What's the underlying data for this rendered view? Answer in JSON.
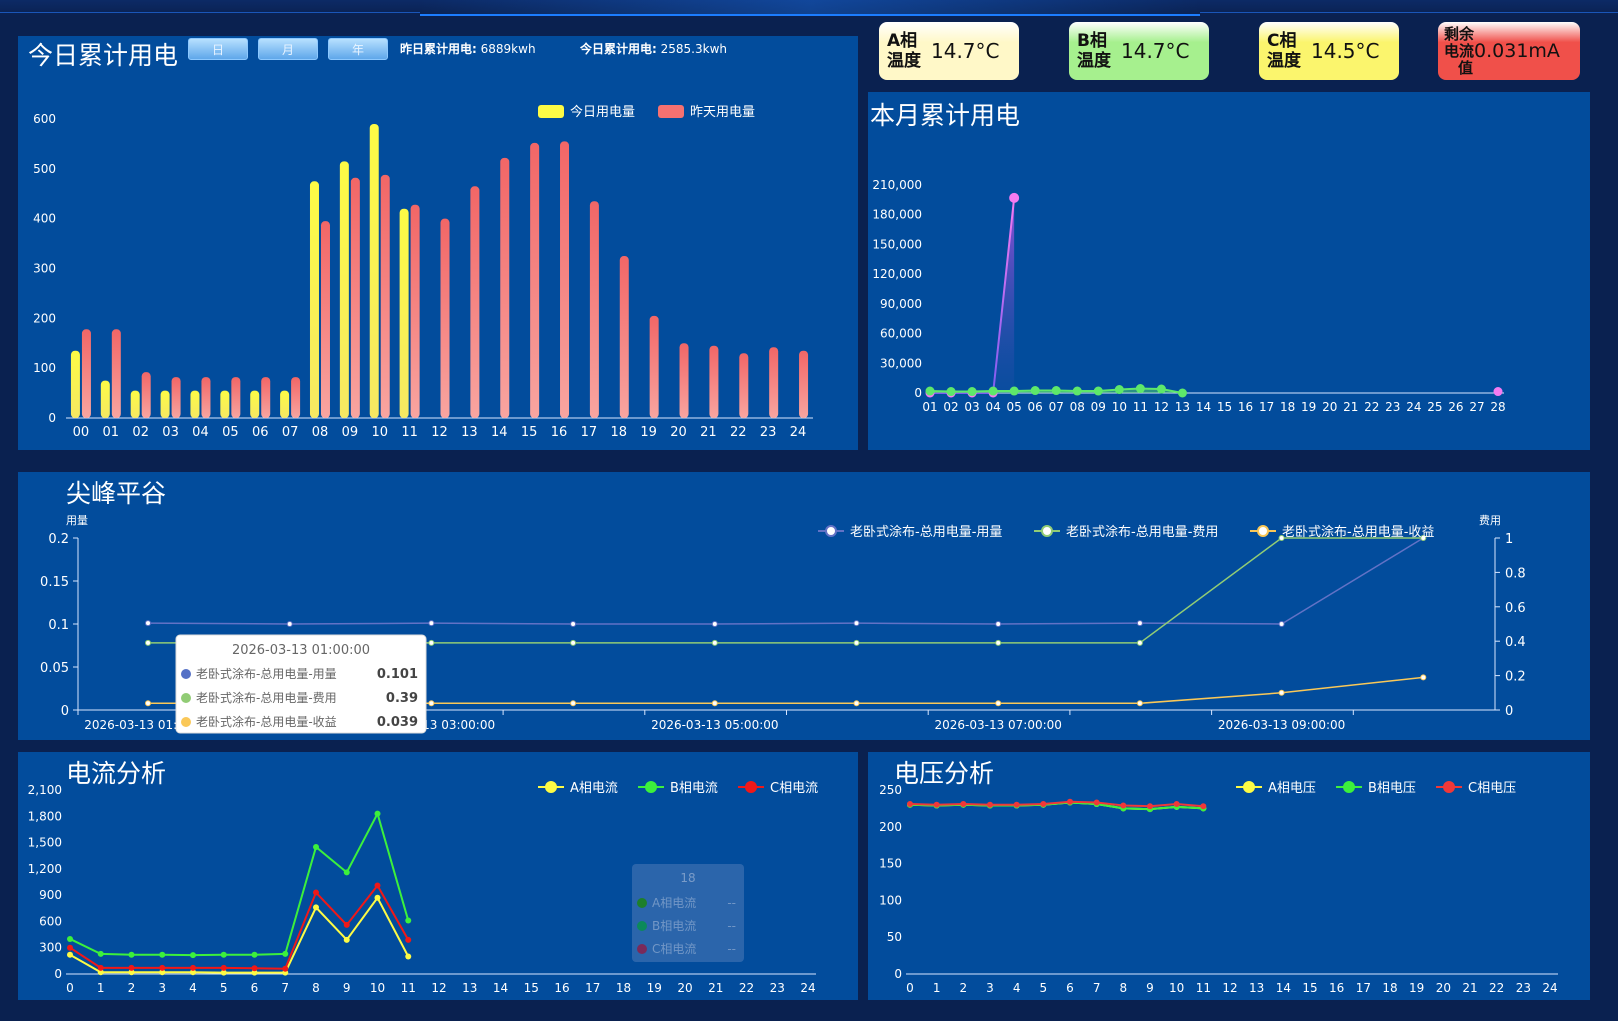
{
  "panels": {
    "today_title": "今日累计用电",
    "month_title": "本月累计用电",
    "peak_title": "尖峰平谷",
    "current_title": "电流分析",
    "voltage_title": "电压分析"
  },
  "buttons": {
    "day": "日",
    "month": "月",
    "year": "年"
  },
  "stats": {
    "yesterday_label": "昨日累计用电:",
    "yesterday_value": "6889kwh",
    "today_label": "今日累计用电:",
    "today_value": "2585.3kwh"
  },
  "cards": [
    {
      "label_line1": "A相",
      "label_line2": "温度",
      "value": "14.7°C",
      "color": "#fff8c8"
    },
    {
      "label_line1": "B相",
      "label_line2": "温度",
      "value": "14.7°C",
      "color": "#a6f08e"
    },
    {
      "label_line1": "C相",
      "label_line2": "温度",
      "value": "14.5°C",
      "color": "#fbf56d"
    },
    {
      "label_line1": "剩余",
      "label_line2": "电流",
      "label_line3": "值",
      "value": "0.031mA",
      "color": "#f0504a"
    }
  ],
  "tooltips": {
    "peak": {
      "title": "2026-03-13 01:00:00",
      "rows": [
        {
          "name": "老卧式涂布-总用电量-用量",
          "value": "0.101",
          "color": "#5470c6"
        },
        {
          "name": "老卧式涂布-总用电量-费用",
          "value": "0.39",
          "color": "#91cc75"
        },
        {
          "name": "老卧式涂布-总用电量-收益",
          "value": "0.039",
          "color": "#fac858"
        }
      ]
    },
    "current": {
      "title": "18",
      "rows": [
        {
          "name": "A相电流",
          "value": "--",
          "color": "#1d7f2a"
        },
        {
          "name": "B相电流",
          "value": "--",
          "color": "#0b8a5a"
        },
        {
          "name": "C相电流",
          "value": "--",
          "color": "#7a2a5a"
        }
      ]
    }
  },
  "chart_data": [
    {
      "id": "today",
      "type": "bar",
      "categories": [
        "00",
        "01",
        "02",
        "03",
        "04",
        "05",
        "06",
        "07",
        "08",
        "09",
        "10",
        "11",
        "12",
        "13",
        "14",
        "15",
        "16",
        "17",
        "18",
        "19",
        "20",
        "21",
        "22",
        "23",
        "24"
      ],
      "series": [
        {
          "name": "今日用电量",
          "color": "#fdfb45",
          "values": [
            135,
            75,
            55,
            55,
            55,
            55,
            55,
            55,
            475,
            515,
            590,
            420,
            null,
            null,
            null,
            null,
            null,
            null,
            null,
            null,
            null,
            null,
            null,
            null,
            null
          ]
        },
        {
          "name": "昨天用电量",
          "color": "#f57171",
          "values": [
            178,
            178,
            92,
            82,
            82,
            82,
            82,
            82,
            395,
            482,
            488,
            428,
            400,
            465,
            522,
            552,
            555,
            435,
            325,
            205,
            150,
            145,
            130,
            142,
            135
          ]
        }
      ],
      "ylim": [
        0,
        600
      ],
      "yticks": [
        0,
        100,
        200,
        300,
        400,
        500,
        600
      ],
      "legend": "top-right"
    },
    {
      "id": "month",
      "type": "line",
      "x": [
        "01",
        "02",
        "03",
        "04",
        "05",
        "06",
        "07",
        "08",
        "09",
        "10",
        "11",
        "12",
        "13",
        "14",
        "15",
        "16",
        "17",
        "18",
        "19",
        "20",
        "21",
        "22",
        "23",
        "24",
        "25",
        "26",
        "27",
        "28"
      ],
      "series": [
        {
          "color": "#f57bf0",
          "values": [
            0,
            0,
            0,
            0,
            197000,
            null,
            null,
            null,
            null,
            null,
            null,
            null,
            null,
            null,
            null,
            null,
            null,
            null,
            null,
            null,
            null,
            null,
            null,
            null,
            null,
            null,
            null,
            1500
          ]
        },
        {
          "color": "#5ee86a",
          "values": [
            2000,
            1500,
            1500,
            2000,
            2000,
            2500,
            2500,
            2000,
            2000,
            3500,
            4500,
            4000,
            0,
            null,
            null,
            null,
            null,
            null,
            null,
            null,
            null,
            null,
            null,
            null,
            null,
            null,
            null,
            null
          ]
        }
      ],
      "ylim": [
        0,
        210000
      ],
      "yticks": [
        0,
        30000,
        60000,
        90000,
        120000,
        150000,
        180000,
        210000
      ],
      "ytick_labels": [
        "0",
        "30,000",
        "60,000",
        "90,000",
        "120,000",
        "150,000",
        "180,000",
        "210,000"
      ]
    },
    {
      "id": "peak",
      "type": "line",
      "x": [
        "2026-03-13 01:00:00",
        "2026-03-13 02:00:00",
        "2026-03-13 03:00:00",
        "2026-03-13 04:00:00",
        "2026-03-13 05:00:00",
        "2026-03-13 06:00:00",
        "2026-03-13 07:00:00",
        "2026-03-13 08:00:00",
        "2026-03-13 09:00:00",
        "2026-03-13 10:00:00"
      ],
      "xtick_labels": [
        "2026-03-13 01:00:00",
        "2026-03-13 03:00:00",
        "2026-03-13 05:00:00",
        "2026-03-13 07:00:00",
        "2026-03-13 09:00:00"
      ],
      "ylabel": "用量",
      "y2label": "费用",
      "series": [
        {
          "name": "老卧式涂布-总用电量-用量",
          "axis": "left",
          "color": "#6272c6",
          "values": [
            0.101,
            0.1,
            0.101,
            0.1,
            0.1,
            0.101,
            0.1,
            0.101,
            0.1,
            0.2
          ]
        },
        {
          "name": "老卧式涂布-总用电量-费用",
          "axis": "right",
          "color": "#91cc75",
          "values": [
            0.39,
            0.39,
            0.39,
            0.39,
            0.39,
            0.39,
            0.39,
            0.39,
            1.0,
            1.0
          ]
        },
        {
          "name": "老卧式涂布-总用电量-收益",
          "axis": "right",
          "color": "#fac858",
          "values": [
            0.039,
            0.039,
            0.039,
            0.039,
            0.039,
            0.039,
            0.039,
            0.039,
            0.1,
            0.19
          ]
        }
      ],
      "ylim": [
        0,
        0.2
      ],
      "yticks": [
        0,
        0.05,
        0.1,
        0.15,
        0.2
      ],
      "ytick_labels": [
        "0",
        "0.05",
        "0.1",
        "0.15",
        "0.2"
      ],
      "y2lim": [
        0,
        1
      ],
      "y2ticks": [
        0,
        0.2,
        0.4,
        0.6,
        0.8,
        1
      ],
      "y2tick_labels": [
        "0",
        "0.2",
        "0.4",
        "0.6",
        "0.8",
        "1"
      ],
      "legend": "top-right"
    },
    {
      "id": "current",
      "type": "line",
      "x": [
        "0",
        "1",
        "2",
        "3",
        "4",
        "5",
        "6",
        "7",
        "8",
        "9",
        "10",
        "11",
        "12",
        "13",
        "14",
        "15",
        "16",
        "17",
        "18",
        "19",
        "20",
        "21",
        "22",
        "23",
        "24"
      ],
      "series": [
        {
          "name": "A相电流",
          "color": "#fdfb45",
          "values": [
            220,
            20,
            20,
            20,
            20,
            15,
            15,
            15,
            760,
            390,
            870,
            200,
            null,
            null,
            null,
            null,
            null,
            null,
            null,
            null,
            null,
            null,
            null,
            null,
            null
          ]
        },
        {
          "name": "B相电流",
          "color": "#3cf03c",
          "values": [
            400,
            230,
            220,
            220,
            215,
            220,
            220,
            230,
            1450,
            1160,
            1830,
            610,
            null,
            null,
            null,
            null,
            null,
            null,
            null,
            null,
            null,
            null,
            null,
            null,
            null
          ]
        },
        {
          "name": "C相电流",
          "color": "#f01818",
          "values": [
            300,
            70,
            70,
            70,
            70,
            70,
            65,
            60,
            930,
            560,
            1010,
            390,
            null,
            null,
            null,
            null,
            null,
            null,
            null,
            null,
            null,
            null,
            null,
            null,
            null
          ]
        }
      ],
      "ylim": [
        0,
        2100
      ],
      "yticks": [
        0,
        300,
        600,
        900,
        1200,
        1500,
        1800,
        2100
      ],
      "ytick_labels": [
        "0",
        "300",
        "600",
        "900",
        "1,200",
        "1,500",
        "1,800",
        "2,100"
      ],
      "legend": "top-right"
    },
    {
      "id": "voltage",
      "type": "line",
      "x": [
        "0",
        "1",
        "2",
        "3",
        "4",
        "5",
        "6",
        "7",
        "8",
        "9",
        "10",
        "11",
        "12",
        "13",
        "14",
        "15",
        "16",
        "17",
        "18",
        "19",
        "20",
        "21",
        "22",
        "23",
        "24"
      ],
      "series": [
        {
          "name": "A相电压",
          "color": "#fdfb45",
          "values": [
            230,
            229,
            230,
            229,
            229,
            230,
            233,
            231,
            225,
            224,
            227,
            225,
            null,
            null,
            null,
            null,
            null,
            null,
            null,
            null,
            null,
            null,
            null,
            null,
            null
          ]
        },
        {
          "name": "B相电压",
          "color": "#3cf03c",
          "values": [
            230,
            229,
            230,
            229,
            229,
            230,
            233,
            231,
            225,
            224,
            227,
            225,
            null,
            null,
            null,
            null,
            null,
            null,
            null,
            null,
            null,
            null,
            null,
            null,
            null
          ]
        },
        {
          "name": "C相电压",
          "color": "#f03838",
          "values": [
            231,
            230,
            231,
            230,
            230,
            231,
            234,
            233,
            229,
            228,
            231,
            228,
            null,
            null,
            null,
            null,
            null,
            null,
            null,
            null,
            null,
            null,
            null,
            null,
            null
          ]
        }
      ],
      "ylim": [
        0,
        250
      ],
      "yticks": [
        0,
        50,
        100,
        150,
        200,
        250
      ],
      "legend": "top-right"
    }
  ]
}
